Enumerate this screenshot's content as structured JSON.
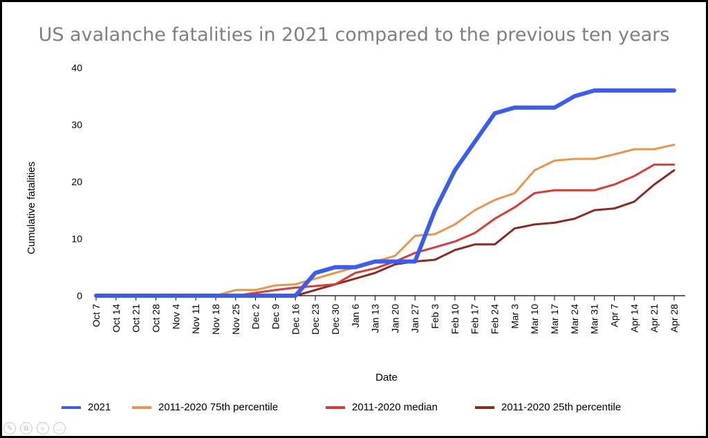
{
  "chart_data": {
    "type": "line",
    "title": "US avalanche fatalities in 2021 compared to the previous ten years",
    "xlabel": "Date",
    "ylabel": "Cumulative fatalities",
    "ylim": [
      0,
      40
    ],
    "yticks": [
      0,
      10,
      20,
      30,
      40
    ],
    "grid": false,
    "legend_position": "bottom",
    "categories": [
      "Oct 7",
      "Oct 14",
      "Oct 21",
      "Oct 28",
      "Nov 4",
      "Nov 11",
      "Nov 18",
      "Nov 25",
      "Dec 2",
      "Dec 9",
      "Dec 16",
      "Dec 23",
      "Dec 30",
      "Jan 6",
      "Jan 13",
      "Jan 20",
      "Jan 27",
      "Feb 3",
      "Feb 10",
      "Feb 17",
      "Feb 24",
      "Mar 3",
      "Mar 10",
      "Mar 17",
      "Mar 24",
      "Mar 31",
      "Apr 7",
      "Apr 14",
      "Apr 21",
      "Apr 28"
    ],
    "series": [
      {
        "name": "2021",
        "color": "#3a5cf0",
        "values": [
          0,
          0,
          0,
          0,
          0,
          0,
          0,
          0,
          0,
          0,
          0,
          4,
          5,
          5,
          6,
          6,
          6,
          15,
          22,
          27,
          32,
          33,
          33,
          33,
          35,
          36,
          36,
          36,
          36,
          36
        ]
      },
      {
        "name": "2011-2020 75th percentile",
        "color": "#e8964a",
        "values": [
          0,
          0,
          0,
          0,
          0,
          0,
          0,
          1,
          1,
          1.8,
          2,
          3,
          4,
          5,
          6,
          7,
          10.5,
          10.8,
          12.5,
          15,
          16.8,
          18,
          22,
          23.7,
          24,
          24,
          24.8,
          25.7,
          25.7,
          26.5
        ]
      },
      {
        "name": "2011-2020 median",
        "color": "#d93b35",
        "values": [
          0,
          0,
          0,
          0,
          0,
          0,
          0,
          0,
          0.5,
          1,
          1.4,
          1.7,
          2,
          4,
          4.8,
          6,
          7.5,
          8.5,
          9.5,
          11,
          13.5,
          15.5,
          18,
          18.5,
          18.5,
          18.5,
          19.5,
          21,
          23,
          23
        ]
      },
      {
        "name": "2011-2020 25th percentile",
        "color": "#8b2a1e",
        "values": [
          0,
          0,
          0,
          0,
          0,
          0,
          0,
          0,
          0,
          0,
          0,
          1,
          2,
          3,
          4,
          5.5,
          6,
          6.3,
          8,
          9,
          9,
          11.8,
          12.5,
          12.8,
          13.5,
          15,
          15.3,
          16.5,
          19.5,
          22
        ]
      }
    ]
  },
  "toolbar": {
    "icons": [
      "pen-icon",
      "copy-icon",
      "search-icon",
      "more-icon"
    ]
  }
}
